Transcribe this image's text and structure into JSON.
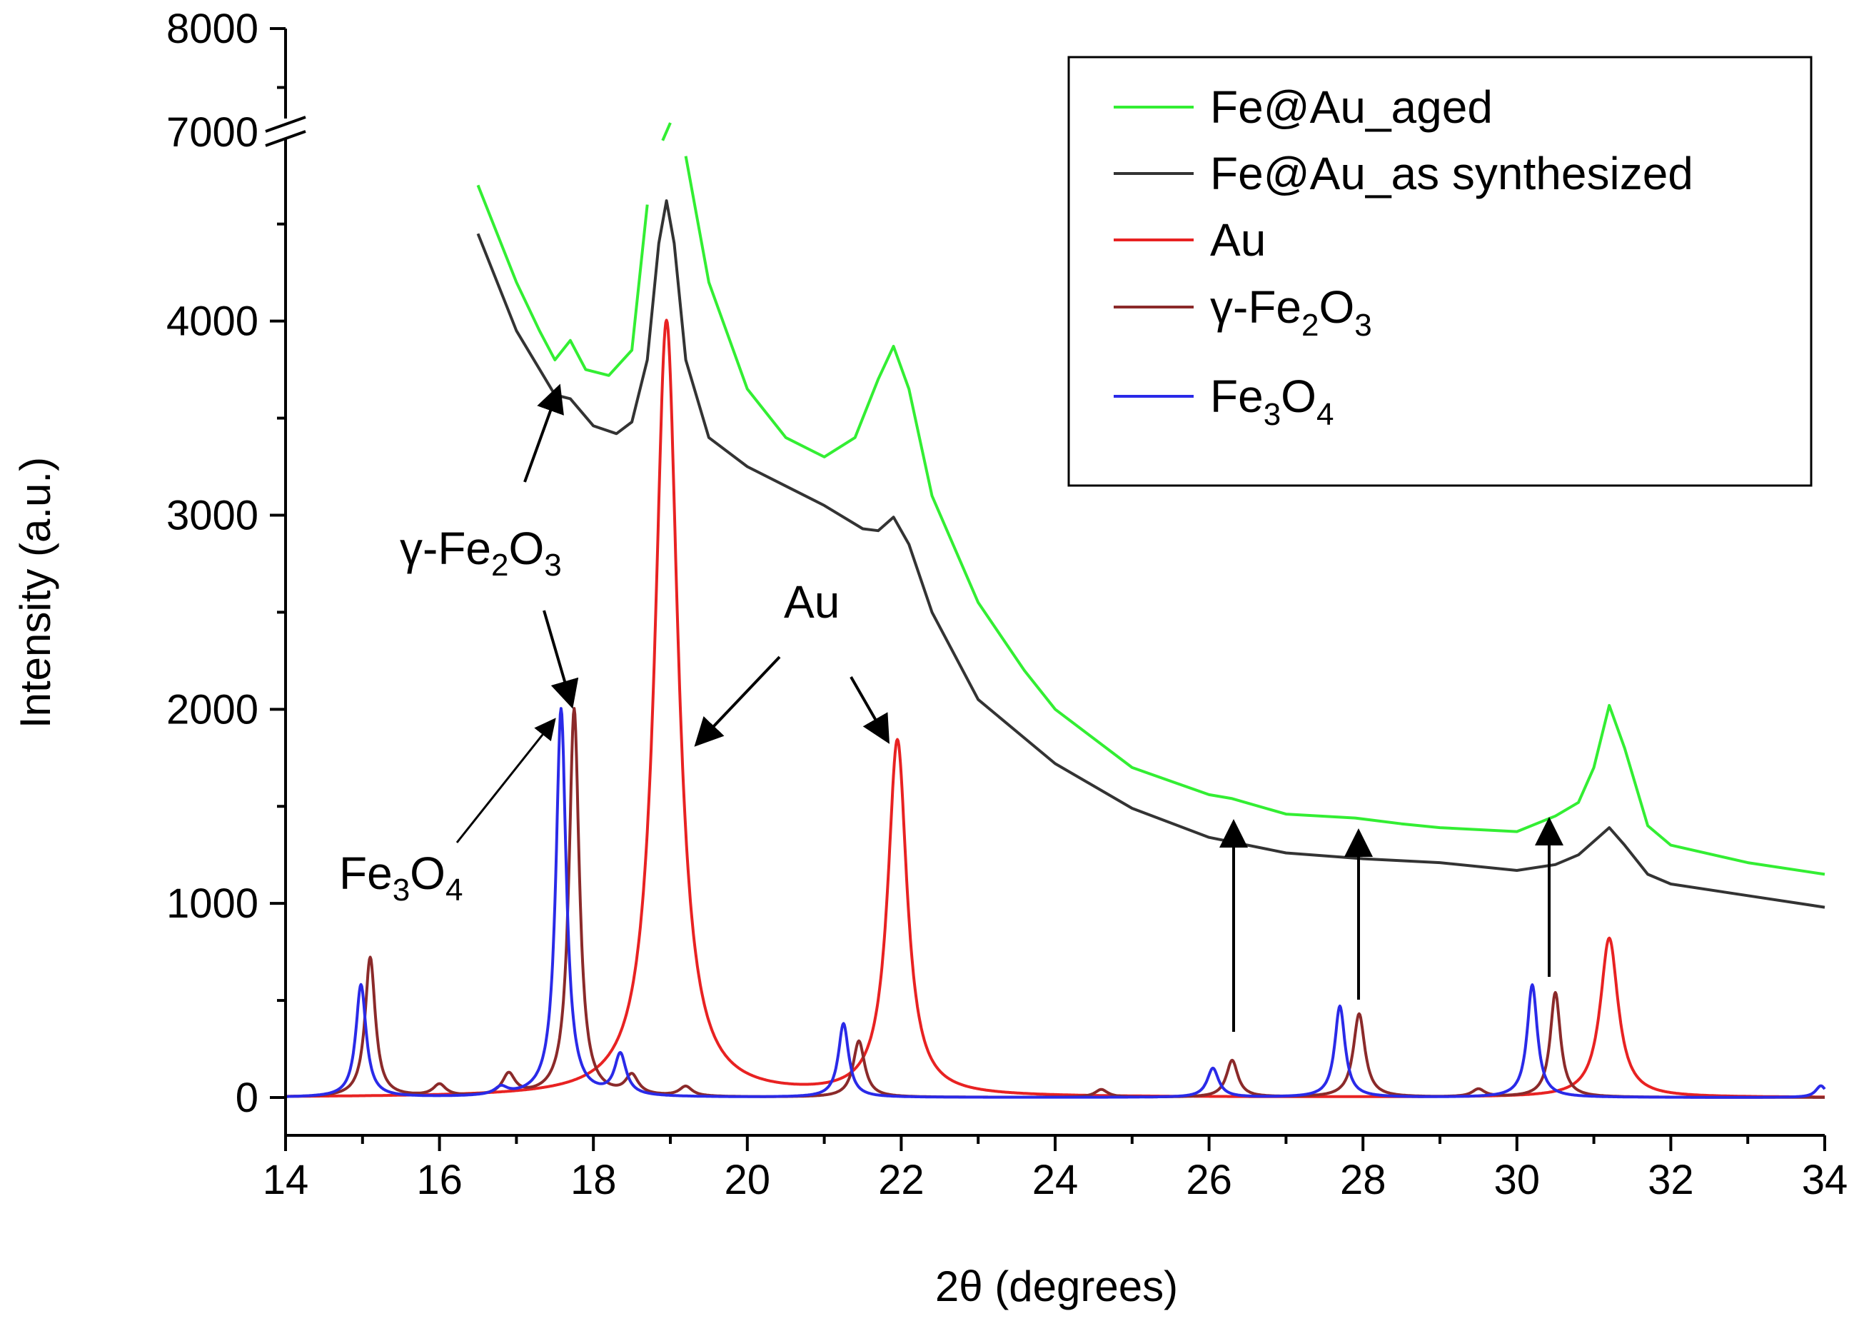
{
  "chart_data": {
    "type": "line",
    "title": "",
    "xlabel": "2θ (degrees)",
    "ylabel": "Intensity (a.u.)",
    "xlim": [
      14,
      34
    ],
    "ylim": [
      0,
      8000
    ],
    "y_axis_break": [
      4900,
      7000
    ],
    "x_ticks": [
      14,
      16,
      18,
      20,
      22,
      24,
      26,
      28,
      30,
      32,
      34
    ],
    "x_tick_labels": [
      "14",
      "16",
      "18",
      "20",
      "22",
      "24",
      "26",
      "28",
      "30",
      "32",
      "34"
    ],
    "y_ticks": [
      0,
      1000,
      2000,
      3000,
      4000,
      7000,
      8000
    ],
    "y_tick_labels": [
      "0",
      "1000",
      "2000",
      "3000",
      "4000",
      "7000",
      "8000"
    ],
    "grid": false,
    "legend_position": "top-right",
    "series": [
      {
        "name": "Fe@Au_aged",
        "legend_label": "Fe@Au_aged",
        "color": "#33ee33",
        "points": [
          [
            14.0,
            6950
          ],
          [
            14.5,
            6850
          ],
          [
            15.0,
            6500
          ],
          [
            15.5,
            5950
          ],
          [
            16.0,
            5300
          ],
          [
            16.5,
            4700
          ],
          [
            17.0,
            4200
          ],
          [
            17.3,
            3950
          ],
          [
            17.5,
            3800
          ],
          [
            17.7,
            3900
          ],
          [
            17.9,
            3750
          ],
          [
            18.2,
            3720
          ],
          [
            18.5,
            3850
          ],
          [
            18.7,
            4600
          ],
          [
            18.8,
            5800
          ],
          [
            18.9,
            7050
          ],
          [
            19.0,
            7200
          ],
          [
            19.1,
            5800
          ],
          [
            19.2,
            4850
          ],
          [
            19.5,
            4200
          ],
          [
            20.0,
            3650
          ],
          [
            20.5,
            3400
          ],
          [
            21.0,
            3300
          ],
          [
            21.4,
            3400
          ],
          [
            21.7,
            3700
          ],
          [
            21.9,
            3870
          ],
          [
            22.1,
            3650
          ],
          [
            22.4,
            3100
          ],
          [
            23.0,
            2550
          ],
          [
            23.6,
            2200
          ],
          [
            24.0,
            2000
          ],
          [
            25.0,
            1700
          ],
          [
            26.0,
            1560
          ],
          [
            26.3,
            1540
          ],
          [
            27.0,
            1460
          ],
          [
            27.9,
            1440
          ],
          [
            28.5,
            1410
          ],
          [
            29.0,
            1390
          ],
          [
            30.0,
            1370
          ],
          [
            30.5,
            1450
          ],
          [
            30.8,
            1520
          ],
          [
            31.0,
            1700
          ],
          [
            31.2,
            2020
          ],
          [
            31.4,
            1800
          ],
          [
            31.7,
            1400
          ],
          [
            32.0,
            1300
          ],
          [
            33.0,
            1210
          ],
          [
            34.0,
            1150
          ]
        ]
      },
      {
        "name": "Fe@Au_as synthesized",
        "legend_label": "Fe@Au_as synthesized",
        "color": "#333333",
        "points": [
          [
            14.0,
            6950
          ],
          [
            14.5,
            6850
          ],
          [
            15.0,
            6450
          ],
          [
            15.5,
            5800
          ],
          [
            16.0,
            5100
          ],
          [
            16.5,
            4450
          ],
          [
            17.0,
            3950
          ],
          [
            17.5,
            3620
          ],
          [
            17.7,
            3600
          ],
          [
            18.0,
            3460
          ],
          [
            18.3,
            3420
          ],
          [
            18.5,
            3480
          ],
          [
            18.7,
            3800
          ],
          [
            18.85,
            4400
          ],
          [
            18.95,
            4620
          ],
          [
            19.05,
            4400
          ],
          [
            19.2,
            3800
          ],
          [
            19.5,
            3400
          ],
          [
            20.0,
            3250
          ],
          [
            20.5,
            3150
          ],
          [
            21.0,
            3050
          ],
          [
            21.5,
            2930
          ],
          [
            21.7,
            2920
          ],
          [
            21.9,
            2990
          ],
          [
            22.1,
            2850
          ],
          [
            22.4,
            2500
          ],
          [
            23.0,
            2050
          ],
          [
            24.0,
            1720
          ],
          [
            25.0,
            1490
          ],
          [
            26.0,
            1340
          ],
          [
            27.0,
            1260
          ],
          [
            28.0,
            1230
          ],
          [
            29.0,
            1210
          ],
          [
            30.0,
            1170
          ],
          [
            30.5,
            1200
          ],
          [
            30.8,
            1250
          ],
          [
            31.0,
            1320
          ],
          [
            31.2,
            1390
          ],
          [
            31.4,
            1300
          ],
          [
            31.7,
            1150
          ],
          [
            32.0,
            1100
          ],
          [
            33.0,
            1040
          ],
          [
            34.0,
            980
          ]
        ]
      },
      {
        "name": "Au",
        "legend_label": "Au",
        "color": "#e82222",
        "peaks": [
          [
            18.95,
            4000,
            0.18
          ],
          [
            21.95,
            1830,
            0.15
          ],
          [
            31.2,
            820,
            0.14
          ]
        ]
      },
      {
        "name": "γ-Fe2O3",
        "legend_label": "γ-Fe",
        "legend_sub1": "2",
        "legend_mid": "O",
        "legend_sub2": "3",
        "color": "#8b2a2a",
        "peaks": [
          [
            15.1,
            720,
            0.08
          ],
          [
            16.0,
            60,
            0.1
          ],
          [
            16.9,
            110,
            0.1
          ],
          [
            17.75,
            2000,
            0.08
          ],
          [
            18.5,
            100,
            0.1
          ],
          [
            19.2,
            50,
            0.1
          ],
          [
            21.45,
            290,
            0.09
          ],
          [
            24.6,
            40,
            0.1
          ],
          [
            26.3,
            190,
            0.09
          ],
          [
            27.95,
            430,
            0.09
          ],
          [
            29.5,
            40,
            0.1
          ],
          [
            30.5,
            540,
            0.08
          ]
        ]
      },
      {
        "name": "Fe3O4",
        "legend_label": "Fe",
        "legend_sub1": "3",
        "legend_mid": "O",
        "legend_sub2": "4",
        "color": "#2a2ae8",
        "peaks": [
          [
            14.98,
            580,
            0.08
          ],
          [
            16.8,
            40,
            0.1
          ],
          [
            17.58,
            2000,
            0.08
          ],
          [
            18.35,
            210,
            0.09
          ],
          [
            21.25,
            380,
            0.08
          ],
          [
            26.05,
            150,
            0.09
          ],
          [
            27.7,
            470,
            0.08
          ],
          [
            30.2,
            580,
            0.08
          ],
          [
            33.95,
            60,
            0.08
          ]
        ]
      }
    ],
    "annotations": {
      "gamma": {
        "text": "γ-Fe",
        "sub1": "2",
        "mid": "O",
        "sub2": "3"
      },
      "au": {
        "text": "Au"
      },
      "fe3o4": {
        "text": "Fe",
        "sub1": "3",
        "mid": "O",
        "sub2": "4"
      }
    }
  }
}
